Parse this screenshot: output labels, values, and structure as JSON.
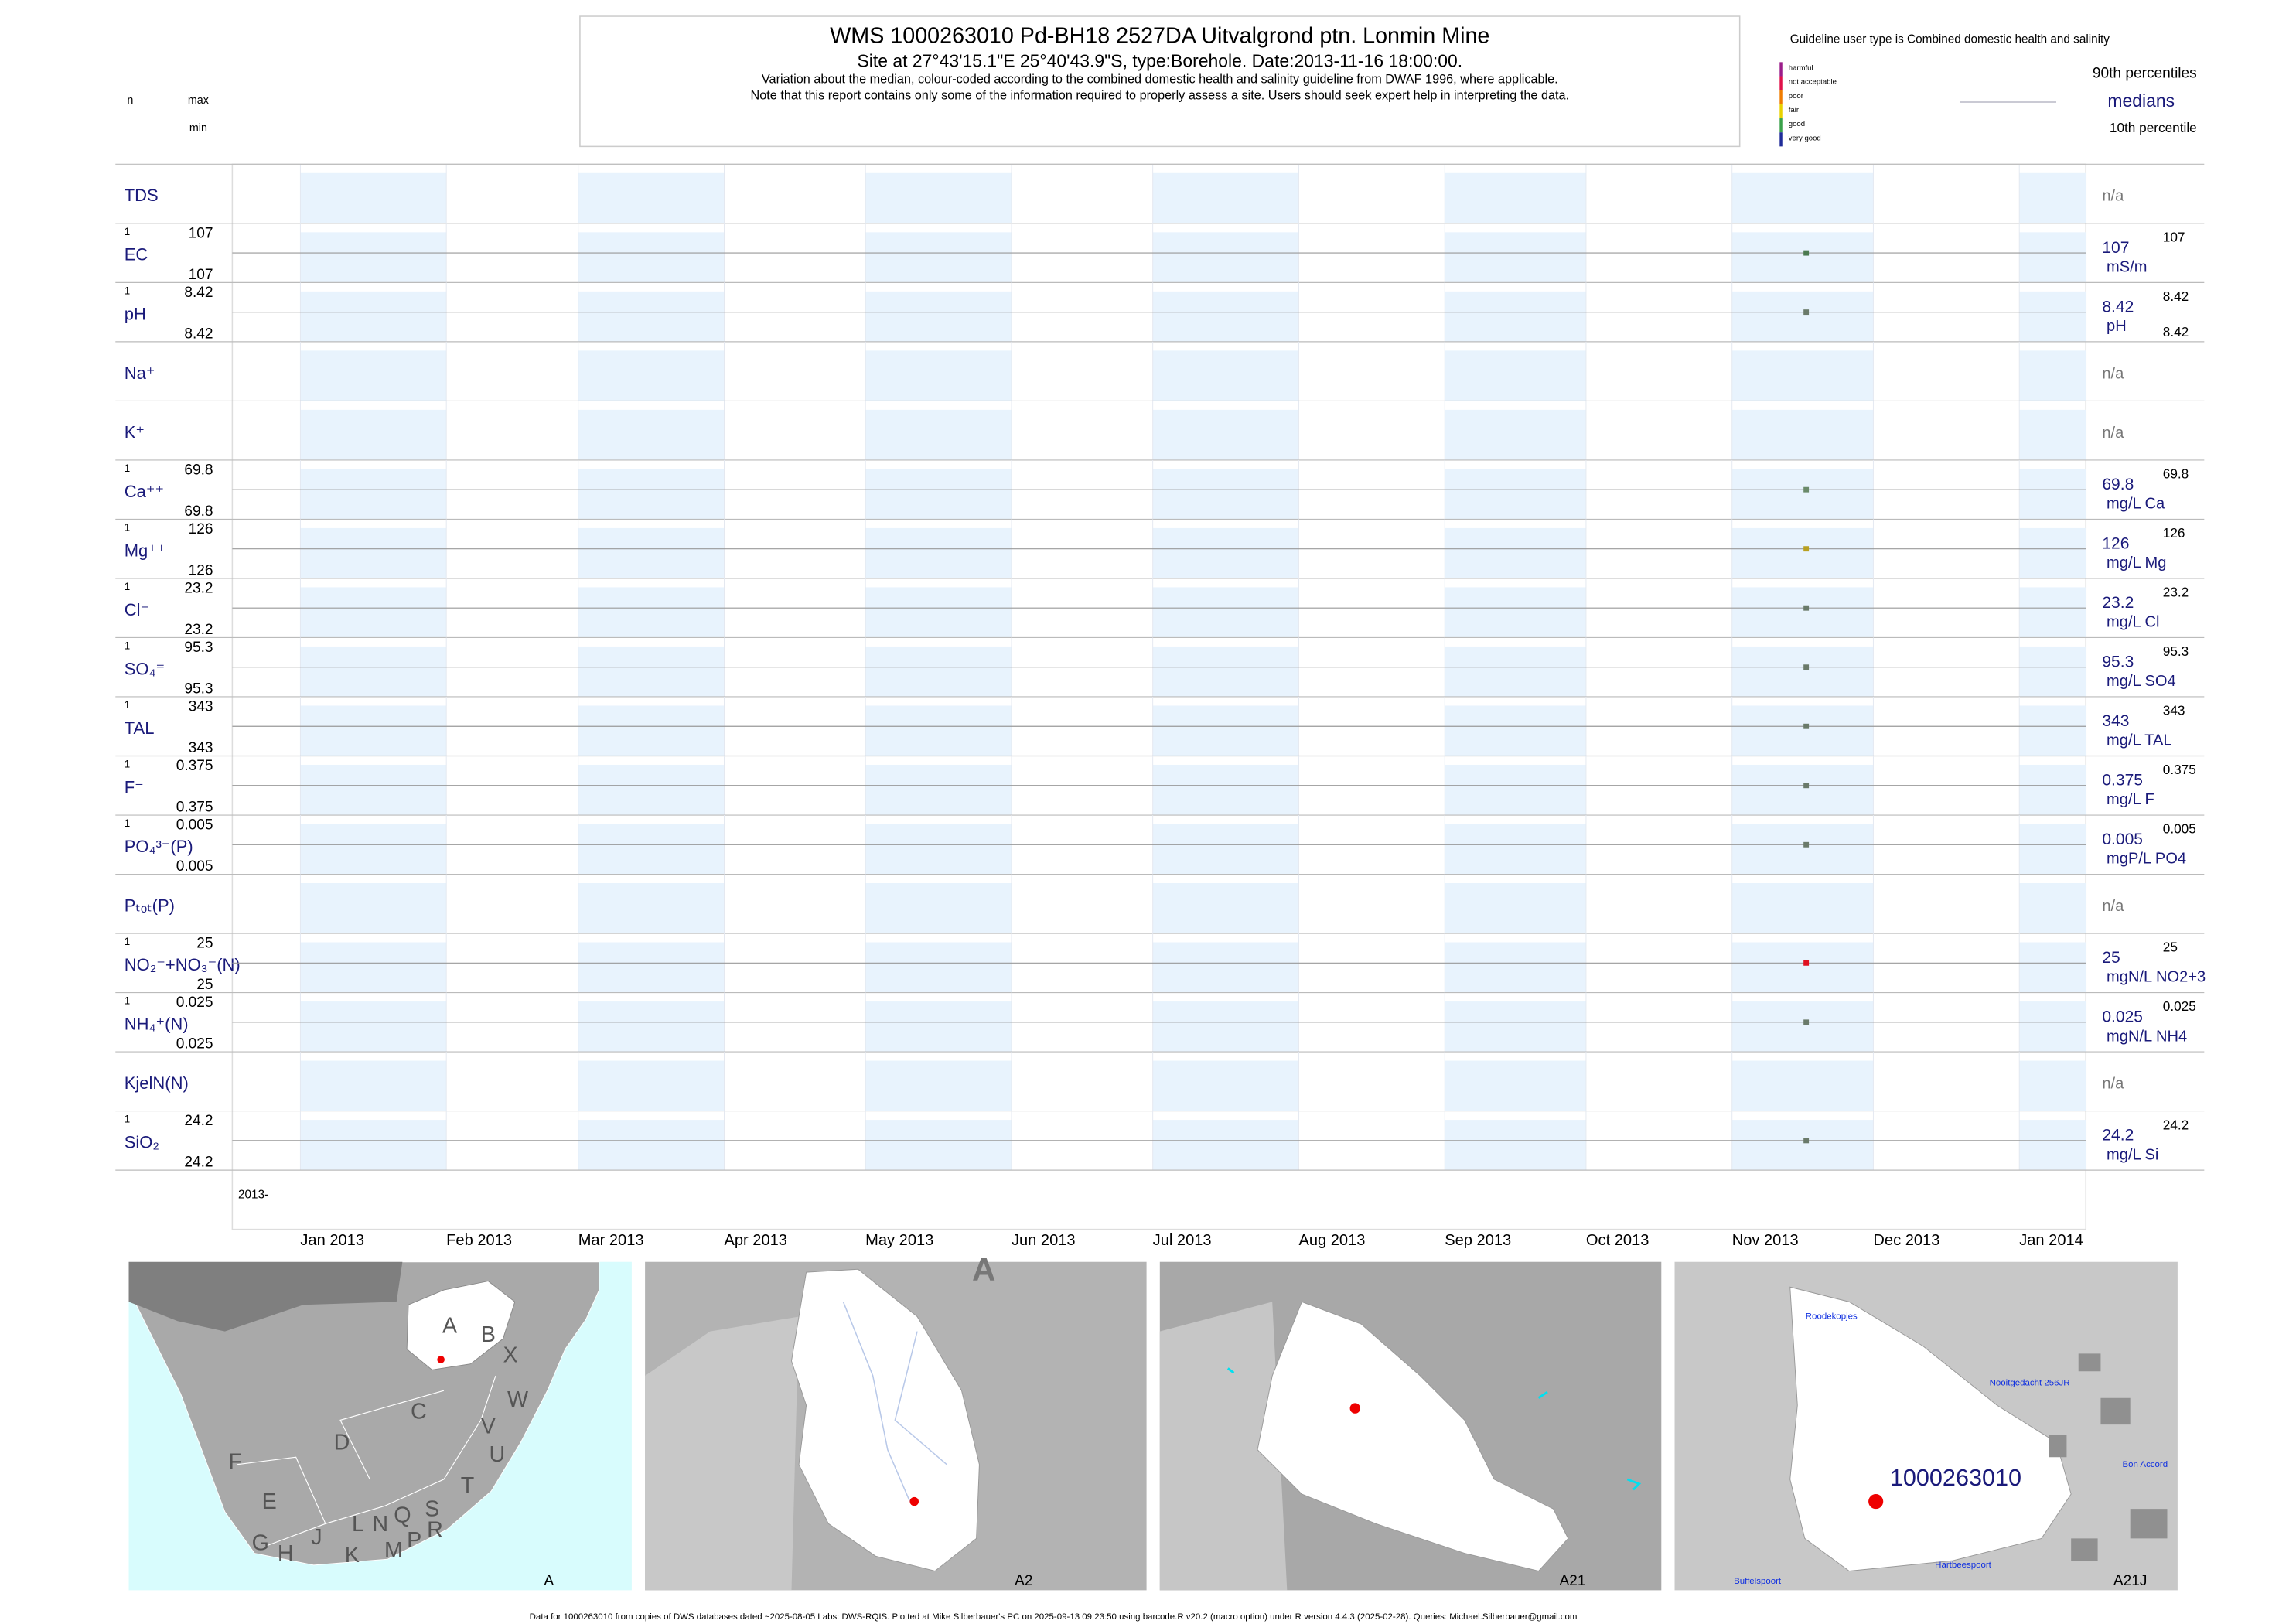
{
  "header": {
    "title": "WMS 1000263010  Pd-BH18 2527DA Uitvalgrond ptn. Lonmin Mine",
    "site": "Site at 27°43'15.1\"E 25°40'43.9\"S, type:Borehole. Date:2013-11-16 18:00:00.",
    "note1": "Variation about the median,  colour-coded according to the combined domestic health and salinity guideline from DWAF 1996, where applicable.",
    "note2": "Note that this report contains only some of the information required to properly assess a site. Users should seek expert help in interpreting the data."
  },
  "column_heads": {
    "n": "n",
    "max": "max",
    "min": "min"
  },
  "legend": {
    "guideline": "Guideline user type is Combined domestic health and salinity",
    "classes": [
      {
        "label": "harmful",
        "color": "#9b1d8a"
      },
      {
        "label": "not acceptable",
        "color": "#e0114a"
      },
      {
        "label": "poor",
        "color": "#f07c00"
      },
      {
        "label": "fair",
        "color": "#e8d200"
      },
      {
        "label": "good",
        "color": "#3aa14a"
      },
      {
        "label": "very good",
        "color": "#1f2c99"
      }
    ],
    "upper": "90th percentiles",
    "middle": "medians",
    "lower": "10th percentile"
  },
  "panels": [
    {
      "label": "TDS",
      "status": "n/a"
    },
    {
      "label": "EC",
      "n": 1,
      "max": 107,
      "min": 107,
      "median": 107,
      "unit": "mS/m",
      "p90": 107,
      "color": "#4a7a50"
    },
    {
      "label": "pH",
      "n": 1,
      "max": 8.42,
      "min": 8.42,
      "median": 8.42,
      "unit": "pH",
      "p90": 8.42,
      "p10": 8.42,
      "color": "#6a7a6a"
    },
    {
      "label": "Na⁺",
      "status": "n/a"
    },
    {
      "label": "K⁺",
      "status": "n/a"
    },
    {
      "label": "Ca⁺⁺",
      "n": 1,
      "max": 69.8,
      "min": 69.8,
      "median": 69.8,
      "unit": "mg/L Ca",
      "p90": 69.8,
      "color": "#6a8a6a"
    },
    {
      "label": "Mg⁺⁺",
      "n": 1,
      "max": 126,
      "min": 126,
      "median": 126,
      "unit": "mg/L Mg",
      "p90": 126,
      "color": "#b8a020"
    },
    {
      "label": "Cl⁻",
      "n": 1,
      "max": 23.2,
      "min": 23.2,
      "median": 23.2,
      "unit": "mg/L Cl",
      "p90": 23.2,
      "color": "#6a7a6a"
    },
    {
      "label": "SO₄⁼",
      "n": 1,
      "max": 95.3,
      "min": 95.3,
      "median": 95.3,
      "unit": "mg/L SO4",
      "p90": 95.3,
      "color": "#6a7a6a"
    },
    {
      "label": "TAL",
      "n": 1,
      "max": 343,
      "min": 343,
      "median": 343,
      "unit": "mg/L TAL",
      "p90": 343,
      "color": "#6a7a6a"
    },
    {
      "label": "F⁻",
      "n": 1,
      "max": 0.375,
      "min": 0.375,
      "median": 0.375,
      "unit": "mg/L F",
      "p90": 0.375,
      "color": "#6a7a6a"
    },
    {
      "label": "PO₄³⁻(P)",
      "n": 1,
      "max": 0.005,
      "min": 0.005,
      "median": 0.005,
      "unit": "mgP/L PO4",
      "p90": 0.005,
      "color": "#6a7a6a"
    },
    {
      "label": "Pₜₒₜ(P)",
      "status": "n/a"
    },
    {
      "label": "NO₂⁻+NO₃⁻(N)",
      "n": 1,
      "max": 25,
      "min": 25,
      "median": 25,
      "unit": "mgN/L NO2+3",
      "p90": 25,
      "color": "#e01020"
    },
    {
      "label": "NH₄⁺(N)",
      "n": 1,
      "max": 0.025,
      "min": 0.025,
      "median": 0.025,
      "unit": "mgN/L NH4",
      "p90": 0.025,
      "color": "#6a7a6a"
    },
    {
      "label": "KjelN(N)",
      "status": "n/a"
    },
    {
      "label": "SiO₂",
      "n": 1,
      "max": 24.2,
      "min": 24.2,
      "median": 24.2,
      "unit": "mg/L Si",
      "p90": 24.2,
      "color": "#6a7a6a"
    }
  ],
  "x_axis": {
    "start": "2013-",
    "months": [
      "Jan 2013",
      "Feb 2013",
      "Mar 2013",
      "Apr 2013",
      "May 2013",
      "Jun 2013",
      "Jul 2013",
      "Aug 2013",
      "Sep 2013",
      "Oct 2013",
      "Nov 2013",
      "Dec 2013",
      "Jan 2014"
    ]
  },
  "maps": [
    {
      "caption": "A",
      "labels": [
        "A",
        "B",
        "X",
        "C",
        "W",
        "D",
        "V",
        "U",
        "F",
        "E",
        "T",
        "G",
        "H",
        "J",
        "K",
        "L",
        "N",
        "Q",
        "M",
        "P",
        "S",
        "R"
      ]
    },
    {
      "caption": "A2",
      "labels": [
        "A"
      ]
    },
    {
      "caption": "A21",
      "labels": []
    },
    {
      "caption": "A21J",
      "labels": [
        "Roodekopjes",
        "Nooitgedacht 256JR",
        "Bon Accord",
        "Buffelspoort",
        "Hartbeespoort",
        "1000263010"
      ]
    }
  ],
  "footer": "Data for 1000263010 from copies of DWS databases dated ~2025-08-05 Labs: DWS-RQIS. Plotted at Mike Silberbauer's PC on 2025-09-13 09:23:50 using barcode.R v20.2 (macro option) under R version 4.4.3 (2025-02-28). Queries: Michael.Silberbauer@gmail.com"
}
